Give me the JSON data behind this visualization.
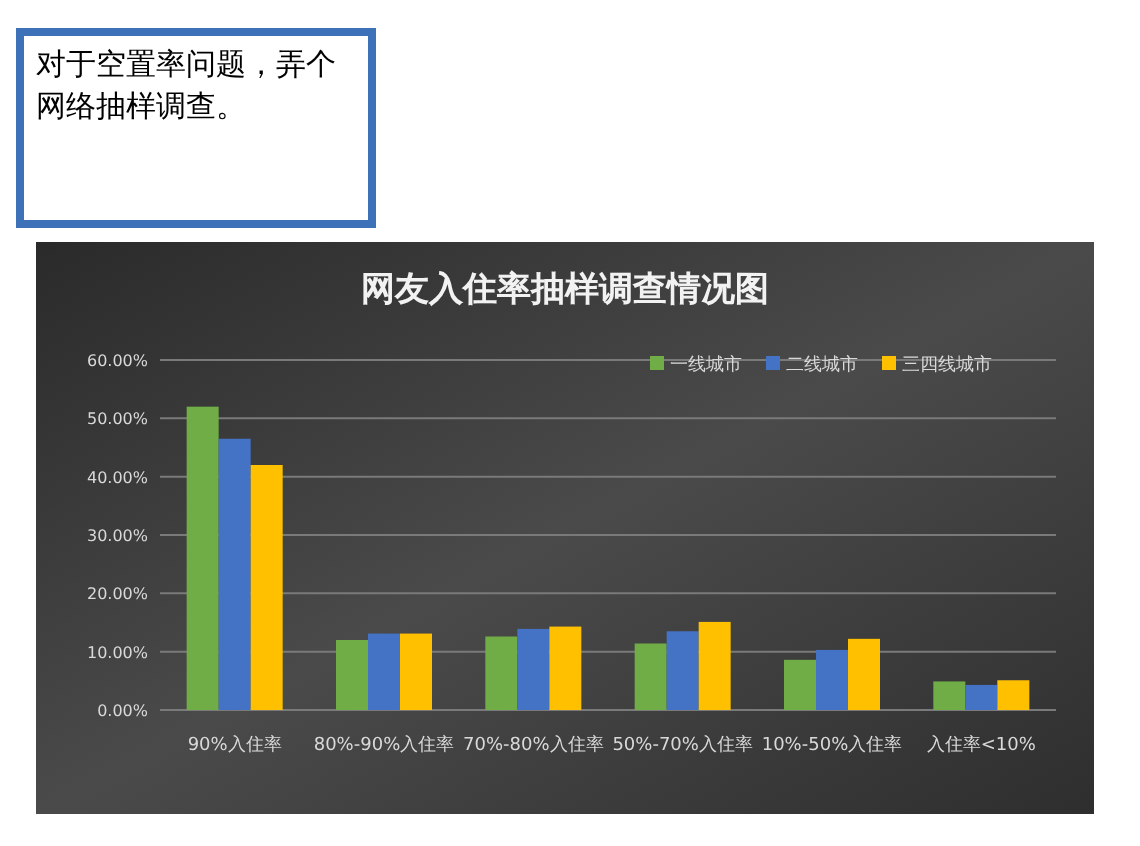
{
  "chart_data": {
    "type": "bar",
    "title": "网友入住率抽样调查情况图",
    "annotations": [
      "对于空置率问题，弄个网络抽样调查。"
    ],
    "categories": [
      "90%入住率",
      "80%-90%入住率",
      "70%-80%入住率",
      "50%-70%入住率",
      "10%-50%入住率",
      "入住率<10%"
    ],
    "series": [
      {
        "name": "一线城市",
        "color": "#70ad47",
        "values": [
          52,
          12,
          12.6,
          11.4,
          8.6,
          4.9
        ]
      },
      {
        "name": "二线城市",
        "color": "#4472c4",
        "values": [
          46.5,
          13.1,
          13.9,
          13.5,
          10.3,
          4.3
        ]
      },
      {
        "name": "三四线城市",
        "color": "#ffc000",
        "values": [
          42,
          13.1,
          14.3,
          15.1,
          12.2,
          5.1
        ]
      }
    ],
    "ylim": [
      0,
      60
    ],
    "yticks": [
      {
        "value": 0,
        "label": "0.00%"
      },
      {
        "value": 10,
        "label": "10.00%"
      },
      {
        "value": 20,
        "label": "20.00%"
      },
      {
        "value": 30,
        "label": "30.00%"
      },
      {
        "value": 40,
        "label": "40.00%"
      },
      {
        "value": 50,
        "label": "50.00%"
      },
      {
        "value": 60,
        "label": "60.00%"
      }
    ],
    "grid": "y",
    "legend": "top right"
  }
}
